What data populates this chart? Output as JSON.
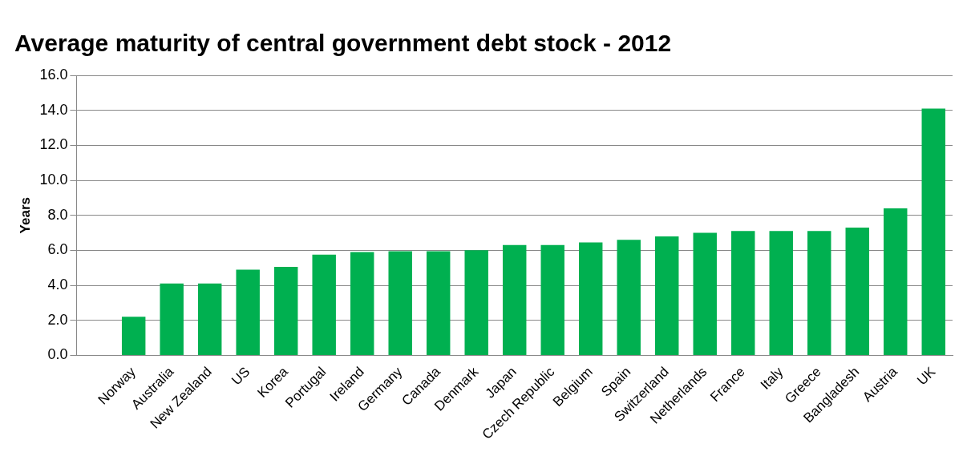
{
  "chart_data": {
    "type": "bar",
    "title": "Average maturity of central government debt stock - 2012",
    "ylabel": "Years",
    "categories": [
      null,
      "Norway",
      "Australia",
      "New Zealand",
      "US",
      "Korea",
      "Portugal",
      "Ireland",
      "Germany",
      "Canada",
      "Denmark",
      "Japan",
      "Czech Republic",
      "Belgium",
      "Spain",
      "Switzerland",
      "Netherlands",
      "France",
      "Italy",
      "Greece",
      "Bangladesh",
      "Austria",
      "UK"
    ],
    "values": [
      null,
      2.2,
      4.1,
      4.1,
      4.9,
      5.05,
      5.75,
      5.9,
      5.95,
      5.95,
      6.0,
      6.3,
      6.3,
      6.45,
      6.6,
      6.8,
      7.0,
      7.1,
      7.1,
      7.1,
      7.3,
      8.4,
      14.1
    ],
    "color": "#00b050",
    "ylim": [
      0,
      16
    ],
    "yticks": [
      {
        "value": 0,
        "label": "0.0"
      },
      {
        "value": 2,
        "label": "2.0"
      },
      {
        "value": 4,
        "label": "4.0"
      },
      {
        "value": 6,
        "label": "6.0"
      },
      {
        "value": 8,
        "label": "8.0"
      },
      {
        "value": 10,
        "label": "10.0"
      },
      {
        "value": 12,
        "label": "12.0"
      },
      {
        "value": 14,
        "label": "14.0"
      },
      {
        "value": 16,
        "label": "16.0"
      }
    ],
    "grid": "y",
    "legend": false
  }
}
